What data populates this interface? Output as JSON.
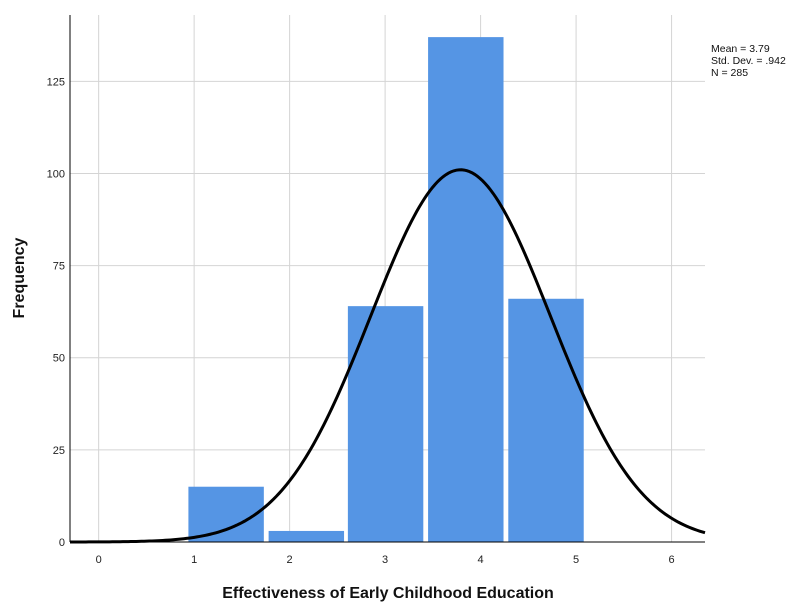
{
  "chart_data": {
    "type": "bar",
    "subtype": "histogram",
    "xlabel": "Effectiveness of Early Childhood Education",
    "ylabel": "Frequency",
    "x_ticks": [
      "0",
      "1",
      "2",
      "3",
      "4",
      "5",
      "6"
    ],
    "y_ticks": [
      "0",
      "25",
      "50",
      "75",
      "100",
      "125"
    ],
    "xlim": [
      -0.3,
      6.35
    ],
    "ylim": [
      0,
      143
    ],
    "bins": [
      {
        "start": 0.94,
        "end": 1.73,
        "value": 15
      },
      {
        "start": 1.78,
        "end": 2.57,
        "value": 3
      },
      {
        "start": 2.61,
        "end": 3.4,
        "value": 64
      },
      {
        "start": 3.45,
        "end": 4.24,
        "value": 137
      },
      {
        "start": 4.29,
        "end": 5.08,
        "value": 66
      }
    ],
    "normal_curve": {
      "mean": 3.79,
      "sd": 0.942,
      "peak": 101
    },
    "stats": {
      "mean": "Mean = 3.79",
      "sd": "Std. Dev. = .942",
      "n": "N = 285"
    },
    "grid": true,
    "colors": {
      "bar": "#5595e4",
      "curve": "#000000",
      "grid": "#d4d4d4"
    }
  }
}
